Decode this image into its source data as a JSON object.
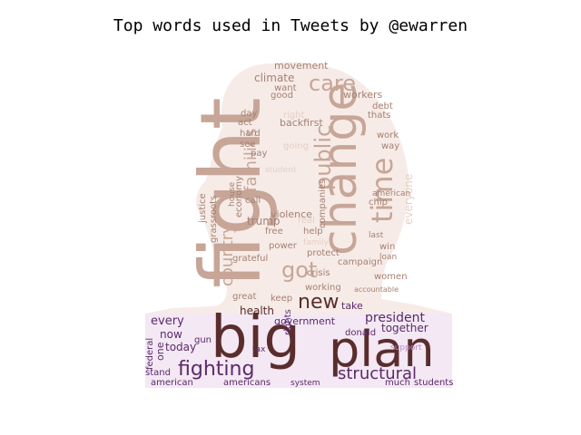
{
  "title": "Top words used in Tweets by @ewarren",
  "palette": {
    "head_light": "#e6cfc6",
    "head_mid": "#c7a597",
    "head_dark": "#a58173",
    "deep": "#5a2d2d",
    "purple": "#5c2a6b",
    "purple_light": "#b88bc7"
  },
  "words": [
    {
      "text": "fight",
      "style": "head_mid"
    },
    {
      "text": "change",
      "style": "head_mid"
    },
    {
      "text": "big",
      "style": "deep"
    },
    {
      "text": "plan",
      "style": "deep"
    },
    {
      "text": "fighting",
      "style": "purple"
    },
    {
      "text": "structural",
      "style": "purple"
    },
    {
      "text": "time",
      "style": "head_mid"
    },
    {
      "text": "care",
      "style": "head_mid"
    },
    {
      "text": "public",
      "style": "head_mid"
    },
    {
      "text": "got",
      "style": "head_mid"
    },
    {
      "text": "new",
      "style": "deep"
    },
    {
      "text": "country",
      "style": "head_mid"
    },
    {
      "text": "families",
      "style": "head_mid"
    },
    {
      "text": "everyone",
      "style": "head_light"
    },
    {
      "text": "climate",
      "style": "head_dark"
    },
    {
      "text": "movement",
      "style": "head_dark"
    },
    {
      "text": "want",
      "style": "head_dark"
    },
    {
      "text": "good",
      "style": "head_dark"
    },
    {
      "text": "workers",
      "style": "head_dark"
    },
    {
      "text": "right",
      "style": "head_light"
    },
    {
      "text": "backfirst",
      "style": "head_dark"
    },
    {
      "text": "thats",
      "style": "head_dark"
    },
    {
      "text": "debt",
      "style": "head_dark"
    },
    {
      "text": "work",
      "style": "head_dark"
    },
    {
      "text": "way",
      "style": "head_dark"
    },
    {
      "text": "act",
      "style": "head_dark"
    },
    {
      "text": "hard",
      "style": "head_dark"
    },
    {
      "text": "day",
      "style": "head_dark"
    },
    {
      "text": "pay",
      "style": "head_dark"
    },
    {
      "text": "call",
      "style": "head_dark"
    },
    {
      "text": "see",
      "style": "head_dark"
    },
    {
      "text": "going",
      "style": "head_light"
    },
    {
      "text": "student",
      "style": "head_light"
    },
    {
      "text": "justice",
      "style": "head_dark"
    },
    {
      "text": "grassroots",
      "style": "head_dark"
    },
    {
      "text": "economy",
      "style": "head_dark"
    },
    {
      "text": "house",
      "style": "head_dark"
    },
    {
      "text": "trump",
      "style": "head_dark"
    },
    {
      "text": "violence",
      "style": "head_dark"
    },
    {
      "text": "free",
      "style": "head_dark"
    },
    {
      "text": "real",
      "style": "head_light"
    },
    {
      "text": "companies",
      "style": "head_dark"
    },
    {
      "text": "chip",
      "style": "head_dark"
    },
    {
      "text": "american",
      "style": "head_dark"
    },
    {
      "text": "help",
      "style": "head_dark"
    },
    {
      "text": "family",
      "style": "head_light"
    },
    {
      "text": "last",
      "style": "head_dark"
    },
    {
      "text": "win",
      "style": "head_dark"
    },
    {
      "text": "loan",
      "style": "head_dark"
    },
    {
      "text": "women",
      "style": "head_dark"
    },
    {
      "text": "power",
      "style": "head_dark"
    },
    {
      "text": "protect",
      "style": "head_dark"
    },
    {
      "text": "crisis",
      "style": "head_dark"
    },
    {
      "text": "campaign",
      "style": "head_dark"
    },
    {
      "text": "grateful",
      "style": "head_dark"
    },
    {
      "text": "working",
      "style": "head_dark"
    },
    {
      "text": "keep",
      "style": "head_dark"
    },
    {
      "text": "great",
      "style": "head_dark"
    },
    {
      "text": "health",
      "style": "deep"
    },
    {
      "text": "government",
      "style": "purple"
    },
    {
      "text": "president",
      "style": "purple"
    },
    {
      "text": "donald",
      "style": "purple"
    },
    {
      "text": "take",
      "style": "purple"
    },
    {
      "text": "together",
      "style": "purple"
    },
    {
      "text": "every",
      "style": "purple"
    },
    {
      "text": "now",
      "style": "purple"
    },
    {
      "text": "today",
      "style": "purple"
    },
    {
      "text": "one",
      "style": "purple"
    },
    {
      "text": "federal",
      "style": "purple"
    },
    {
      "text": "stand",
      "style": "purple"
    },
    {
      "text": "american",
      "style": "purple"
    },
    {
      "text": "americans",
      "style": "purple"
    },
    {
      "text": "system",
      "style": "purple"
    },
    {
      "text": "rights",
      "style": "purple"
    },
    {
      "text": "gun",
      "style": "purple"
    },
    {
      "text": "tax",
      "style": "purple"
    },
    {
      "text": "much",
      "style": "purple"
    },
    {
      "text": "students",
      "style": "purple"
    },
    {
      "text": "support",
      "style": "purple_light"
    },
    {
      "text": "accountable",
      "style": "head_dark"
    }
  ]
}
